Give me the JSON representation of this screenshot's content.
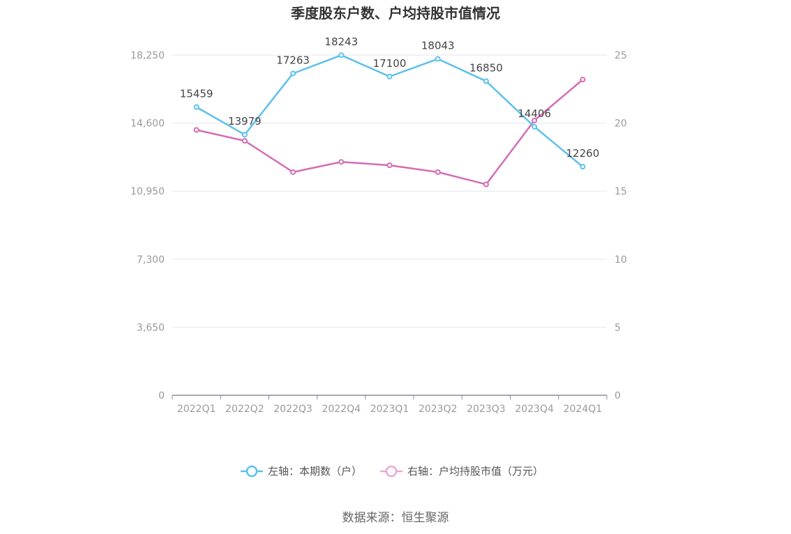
{
  "chart_data": {
    "type": "line",
    "title": "季度股东户数、户均持股市值情况",
    "categories": [
      "2022Q1",
      "2022Q2",
      "2022Q3",
      "2022Q4",
      "2023Q1",
      "2023Q2",
      "2023Q3",
      "2023Q4",
      "2024Q1"
    ],
    "left_axis": {
      "ticks": [
        "0",
        "3,650",
        "7,300",
        "10,950",
        "14,600",
        "18,250"
      ],
      "ylim": [
        0,
        18250
      ]
    },
    "right_axis": {
      "ticks": [
        "0",
        "5",
        "10",
        "15",
        "20",
        "25"
      ],
      "ylim": [
        0,
        25
      ]
    },
    "series": [
      {
        "name": "左轴：本期数（户）",
        "axis": "left",
        "color": "#5bc0ee",
        "values": [
          15459,
          13979,
          17263,
          18243,
          17100,
          18043,
          16850,
          14406,
          12260
        ],
        "labels": [
          "15459",
          "13979",
          "17263",
          "18243",
          "17100",
          "18043",
          "16850",
          "14406",
          "12260"
        ]
      },
      {
        "name": "右轴：户均持股市值（万元）",
        "axis": "right",
        "color": "#d56cb5",
        "values": [
          19.5,
          18.7,
          16.4,
          17.15,
          16.9,
          16.4,
          15.5,
          20.2,
          23.2
        ]
      }
    ],
    "grid": true,
    "legend_position": "bottom"
  },
  "source": "数据来源：恒生聚源"
}
